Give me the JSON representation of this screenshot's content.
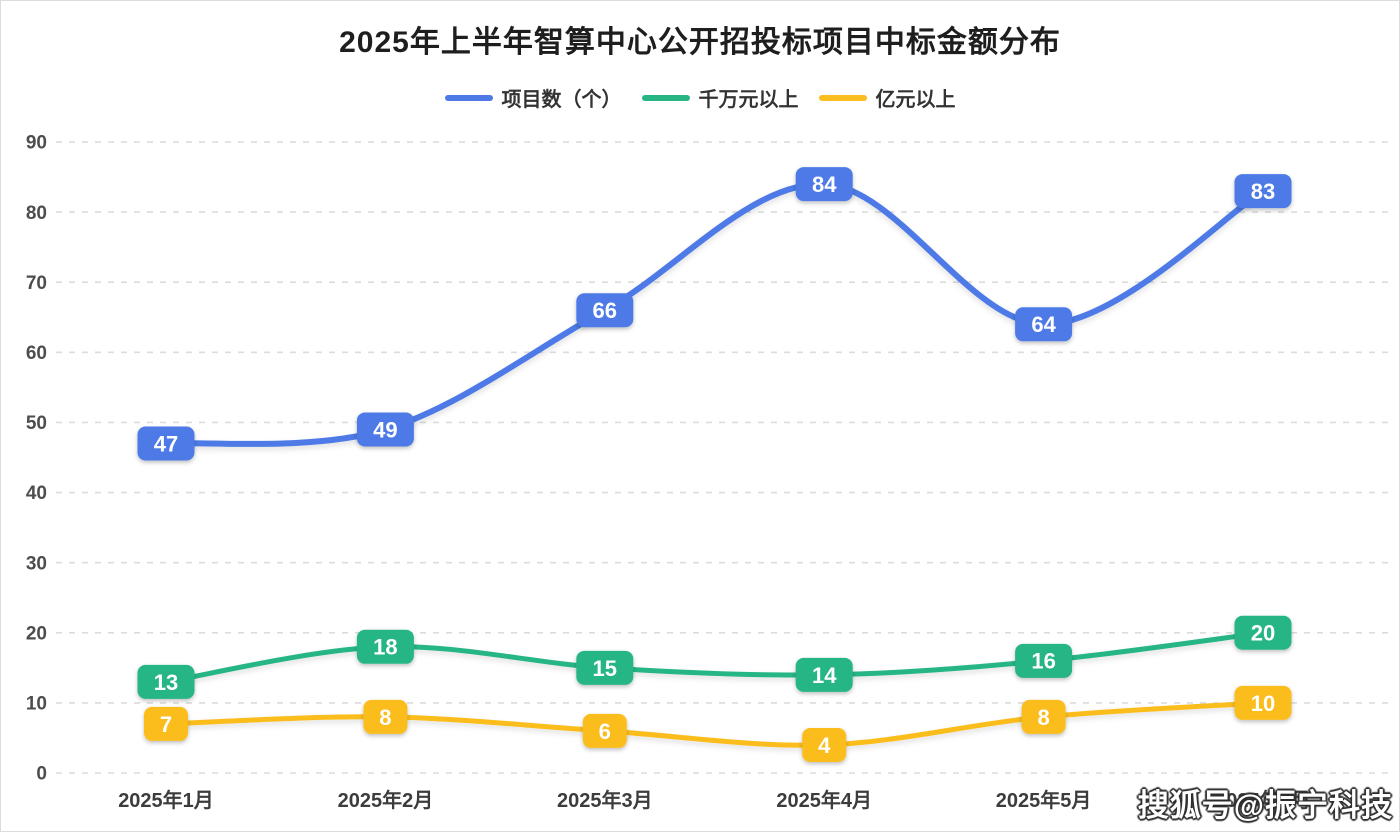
{
  "title": "2025年上半年智算中心公开招投标项目中标金额分布",
  "watermark": "搜狐号@振宁科技",
  "chart_data": {
    "type": "line",
    "smooth": true,
    "grid": true,
    "legend_position": "top",
    "categories": [
      "2025年1月",
      "2025年2月",
      "2025年3月",
      "2025年4月",
      "2025年5月",
      "2025年6月"
    ],
    "series": [
      {
        "name": "项目数（个）",
        "color": "#4d7ae6",
        "values": [
          47,
          49,
          66,
          84,
          64,
          83
        ]
      },
      {
        "name": "千万元以上",
        "color": "#28b584",
        "values": [
          13,
          18,
          15,
          14,
          16,
          20
        ]
      },
      {
        "name": "亿元以上",
        "color": "#fbbd1f",
        "values": [
          7,
          8,
          6,
          4,
          8,
          10
        ]
      }
    ],
    "ylim": [
      0,
      90
    ],
    "ytick_step": 10,
    "xlabel": "",
    "ylabel": ""
  }
}
